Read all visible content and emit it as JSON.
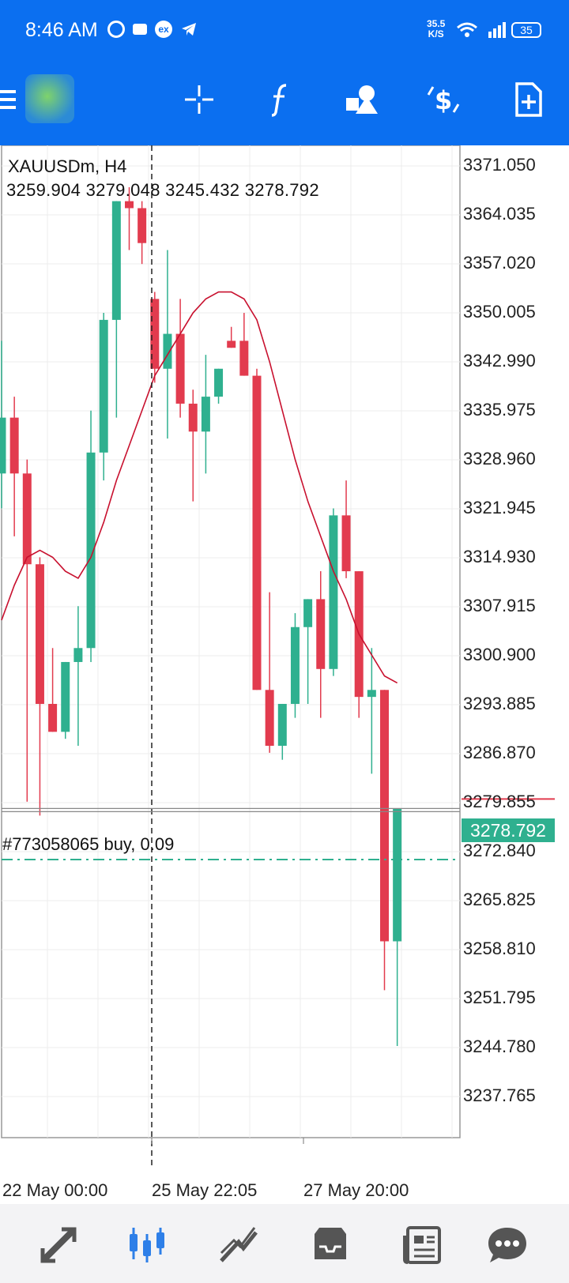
{
  "status_bar": {
    "time": "8:46 AM",
    "net_speed_value": "35.5",
    "net_speed_unit": "K/S",
    "battery": "35"
  },
  "toolbar": {
    "icons": [
      "menu-icon",
      "metatrader-logo",
      "crosshair-icon",
      "indicators-icon",
      "objects-icon",
      "dollar-settings-icon",
      "new-order-icon"
    ]
  },
  "chart": {
    "symbol_timeframe": "XAUUSDm, H4",
    "ohlc": "3259.904 3279.048 3245.432 3278.792",
    "order_line_label": "#773058065 buy, 0.09",
    "current_price": "3278.792",
    "price_axis": [
      "3371.050",
      "3364.035",
      "3357.020",
      "3350.005",
      "3342.990",
      "3335.975",
      "3328.960",
      "3321.945",
      "3314.930",
      "3307.915",
      "3300.900",
      "3293.885",
      "3286.870",
      "3279.855",
      "3272.840",
      "3265.825",
      "3258.810",
      "3251.795",
      "3244.780",
      "3237.765"
    ],
    "time_axis": [
      "22 May 00:00",
      "25 May 22:05",
      "27 May 20:00"
    ],
    "colors": {
      "bull": "#2fb08f",
      "bear": "#e23b4e",
      "ma": "#c8102e",
      "order_line": "#2fb08f"
    },
    "candles": [
      {
        "o": 3327,
        "h": 3346,
        "l": 3322,
        "c": 3335
      },
      {
        "o": 3335,
        "h": 3338,
        "l": 3318,
        "c": 3327
      },
      {
        "o": 3327,
        "h": 3329,
        "l": 3280,
        "c": 3314
      },
      {
        "o": 3314,
        "h": 3315,
        "l": 3278,
        "c": 3294
      },
      {
        "o": 3294,
        "h": 3302,
        "l": 3290,
        "c": 3290
      },
      {
        "o": 3290,
        "h": 3300,
        "l": 3289,
        "c": 3300
      },
      {
        "o": 3300,
        "h": 3308,
        "l": 3288,
        "c": 3302
      },
      {
        "o": 3302,
        "h": 3336,
        "l": 3300,
        "c": 3330
      },
      {
        "o": 3330,
        "h": 3350,
        "l": 3326,
        "c": 3349
      },
      {
        "o": 3349,
        "h": 3366,
        "l": 3335,
        "c": 3366
      },
      {
        "o": 3366,
        "h": 3368,
        "l": 3359,
        "c": 3365
      },
      {
        "o": 3365,
        "h": 3366,
        "l": 3357,
        "c": 3360
      },
      {
        "o": 3352,
        "h": 3353,
        "l": 3340,
        "c": 3342
      },
      {
        "o": 3342,
        "h": 3359,
        "l": 3332,
        "c": 3347
      },
      {
        "o": 3347,
        "h": 3352,
        "l": 3335,
        "c": 3337
      },
      {
        "o": 3337,
        "h": 3339,
        "l": 3323,
        "c": 3333
      },
      {
        "o": 3333,
        "h": 3344,
        "l": 3327,
        "c": 3338
      },
      {
        "o": 3338,
        "h": 3342,
        "l": 3337,
        "c": 3342
      },
      {
        "o": 3346,
        "h": 3348,
        "l": 3345,
        "c": 3345
      },
      {
        "o": 3346,
        "h": 3350,
        "l": 3341,
        "c": 3341
      },
      {
        "o": 3341,
        "h": 3342,
        "l": 3296,
        "c": 3296
      },
      {
        "o": 3296,
        "h": 3310,
        "l": 3287,
        "c": 3288
      },
      {
        "o": 3288,
        "h": 3294,
        "l": 3286,
        "c": 3294
      },
      {
        "o": 3294,
        "h": 3307,
        "l": 3292,
        "c": 3305
      },
      {
        "o": 3305,
        "h": 3309,
        "l": 3294,
        "c": 3309
      },
      {
        "o": 3309,
        "h": 3313,
        "l": 3292,
        "c": 3299
      },
      {
        "o": 3299,
        "h": 3322,
        "l": 3298,
        "c": 3321
      },
      {
        "o": 3321,
        "h": 3326,
        "l": 3312,
        "c": 3313
      },
      {
        "o": 3313,
        "h": 3313,
        "l": 3292,
        "c": 3295
      },
      {
        "o": 3295,
        "h": 3302,
        "l": 3284,
        "c": 3296
      },
      {
        "o": 3296,
        "h": 3296,
        "l": 3253,
        "c": 3260
      },
      {
        "o": 3260,
        "h": 3279,
        "l": 3245,
        "c": 3279
      }
    ],
    "moving_average": [
      3306,
      3311,
      3315,
      3316,
      3315,
      3313,
      3312,
      3315,
      3320,
      3326,
      3331,
      3336,
      3341,
      3344,
      3347,
      3350,
      3352,
      3353,
      3353,
      3352,
      3349,
      3343,
      3336,
      3329,
      3323,
      3318,
      3313,
      3309,
      3304,
      3301,
      3298,
      3297
    ]
  },
  "bottom_nav": {
    "icons": [
      "quotes-icon",
      "chart-icon",
      "trade-icon",
      "history-icon",
      "news-icon",
      "messages-icon"
    ]
  }
}
